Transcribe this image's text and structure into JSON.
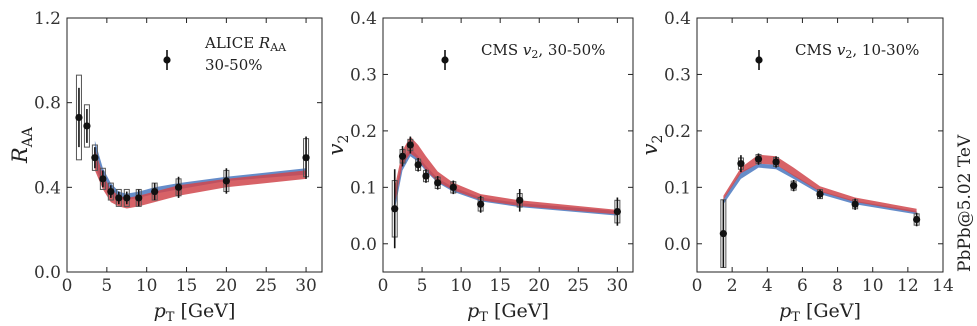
{
  "side_label": "PbPb@5.02 TeV",
  "colors": {
    "band_blue": "#4a78c0",
    "band_red": "#d0464c",
    "marker": "#111111",
    "syst_box": "#555555"
  },
  "chart_data": [
    {
      "type": "scatter",
      "panel": "raa",
      "ylabel_main": "R",
      "ylabel_sub": "AA",
      "xlabel_main": "p",
      "xlabel_sub": "T",
      "xlabel_unit": " [GeV]",
      "xlim": [
        0,
        32
      ],
      "ylim": [
        0.0,
        1.2
      ],
      "xticks": [
        0,
        5,
        10,
        15,
        20,
        25,
        30
      ],
      "yticks": [
        0.0,
        0.4,
        0.8,
        1.2
      ],
      "ytick_labels": [
        "0.0",
        "0.4",
        "0.8",
        "1.2"
      ],
      "legend": {
        "prefix": "ALICE ",
        "italic": "R",
        "sub": "AA",
        "line2": "30-50%"
      },
      "points": [
        {
          "x": 1.5,
          "y": 0.73,
          "err": 0.14,
          "sys": 0.2
        },
        {
          "x": 2.5,
          "y": 0.69,
          "err": 0.08,
          "sys": 0.1
        },
        {
          "x": 3.5,
          "y": 0.54,
          "err": 0.05,
          "sys": 0.06
        },
        {
          "x": 4.5,
          "y": 0.44,
          "err": 0.04,
          "sys": 0.05
        },
        {
          "x": 5.5,
          "y": 0.38,
          "err": 0.03,
          "sys": 0.04
        },
        {
          "x": 6.5,
          "y": 0.35,
          "err": 0.03,
          "sys": 0.04
        },
        {
          "x": 7.5,
          "y": 0.35,
          "err": 0.03,
          "sys": 0.04
        },
        {
          "x": 9.0,
          "y": 0.35,
          "err": 0.04,
          "sys": 0.04
        },
        {
          "x": 11.0,
          "y": 0.38,
          "err": 0.04,
          "sys": 0.04
        },
        {
          "x": 14.0,
          "y": 0.4,
          "err": 0.05,
          "sys": 0.04
        },
        {
          "x": 20.0,
          "y": 0.43,
          "err": 0.06,
          "sys": 0.05
        },
        {
          "x": 30.0,
          "y": 0.54,
          "err": 0.1,
          "sys": 0.09
        }
      ],
      "band_blue": {
        "x": [
          3.5,
          4.5,
          5.5,
          6.5,
          7.5,
          9,
          11,
          14,
          20,
          30
        ],
        "lo": [
          0.5,
          0.41,
          0.36,
          0.34,
          0.34,
          0.35,
          0.37,
          0.39,
          0.43,
          0.46
        ],
        "hi": [
          0.62,
          0.49,
          0.42,
          0.38,
          0.37,
          0.38,
          0.4,
          0.42,
          0.45,
          0.49
        ]
      },
      "band_red": {
        "x": [
          3.5,
          4.5,
          5.5,
          6.5,
          7.5,
          9,
          11,
          14,
          20,
          30
        ],
        "lo": [
          0.48,
          0.39,
          0.33,
          0.31,
          0.3,
          0.31,
          0.33,
          0.36,
          0.4,
          0.44
        ],
        "hi": [
          0.58,
          0.46,
          0.39,
          0.36,
          0.35,
          0.36,
          0.38,
          0.41,
          0.44,
          0.48
        ]
      }
    },
    {
      "type": "scatter",
      "panel": "v2_3050",
      "ylabel_main": "v",
      "ylabel_sub": "2",
      "xlabel_main": "p",
      "xlabel_sub": "T",
      "xlabel_unit": " [GeV]",
      "xlim": [
        0,
        32
      ],
      "ylim": [
        -0.05,
        0.4
      ],
      "xticks": [
        0,
        5,
        10,
        15,
        20,
        25,
        30
      ],
      "yticks": [
        0.0,
        0.1,
        0.2,
        0.3,
        0.4
      ],
      "ytick_labels": [
        "0.0",
        "0.1",
        "0.2",
        "0.3",
        "0.4"
      ],
      "legend": {
        "prefix": "CMS ",
        "italic": "v",
        "sub": "2",
        "line2": ", 30-50%"
      },
      "points": [
        {
          "x": 1.5,
          "y": 0.062,
          "err": 0.07,
          "sys": 0.05
        },
        {
          "x": 2.5,
          "y": 0.155,
          "err": 0.018,
          "sys": 0.012
        },
        {
          "x": 3.5,
          "y": 0.175,
          "err": 0.015,
          "sys": 0.01
        },
        {
          "x": 4.5,
          "y": 0.14,
          "err": 0.012,
          "sys": 0.01
        },
        {
          "x": 5.5,
          "y": 0.12,
          "err": 0.012,
          "sys": 0.01
        },
        {
          "x": 7.0,
          "y": 0.108,
          "err": 0.012,
          "sys": 0.01
        },
        {
          "x": 9.0,
          "y": 0.1,
          "err": 0.012,
          "sys": 0.01
        },
        {
          "x": 12.5,
          "y": 0.07,
          "err": 0.015,
          "sys": 0.012
        },
        {
          "x": 17.5,
          "y": 0.077,
          "err": 0.02,
          "sys": 0.012
        },
        {
          "x": 30.0,
          "y": 0.057,
          "err": 0.025,
          "sys": 0.02
        }
      ],
      "band_blue": {
        "x": [
          1.5,
          2.5,
          3.5,
          4.5,
          5.5,
          7,
          9,
          12.5,
          17.5,
          30
        ],
        "lo": [
          0.06,
          0.13,
          0.155,
          0.145,
          0.128,
          0.108,
          0.092,
          0.075,
          0.065,
          0.05
        ],
        "hi": [
          0.09,
          0.15,
          0.17,
          0.155,
          0.138,
          0.116,
          0.1,
          0.082,
          0.072,
          0.058
        ]
      },
      "band_red": {
        "x": [
          1.5,
          2.5,
          3.5,
          4.5,
          5.5,
          7,
          9,
          12.5,
          17.5,
          30
        ],
        "lo": [
          0.07,
          0.14,
          0.16,
          0.15,
          0.13,
          0.11,
          0.095,
          0.077,
          0.067,
          0.052
        ],
        "hi": [
          0.1,
          0.165,
          0.19,
          0.175,
          0.155,
          0.128,
          0.108,
          0.088,
          0.077,
          0.06
        ]
      }
    },
    {
      "type": "scatter",
      "panel": "v2_1030",
      "ylabel_main": "v",
      "ylabel_sub": "2",
      "xlabel_main": "p",
      "xlabel_sub": "T",
      "xlabel_unit": " [GeV]",
      "xlim": [
        0,
        14
      ],
      "ylim": [
        -0.05,
        0.4
      ],
      "xticks": [
        0,
        2,
        4,
        6,
        8,
        10,
        12,
        14
      ],
      "yticks": [
        0.0,
        0.1,
        0.2,
        0.3,
        0.4
      ],
      "ytick_labels": [
        "0.0",
        "0.1",
        "0.2",
        "0.3",
        "0.4"
      ],
      "legend": {
        "prefix": "CMS ",
        "italic": "v",
        "sub": "2",
        "line2": ", 10-30%"
      },
      "points": [
        {
          "x": 1.5,
          "y": 0.018,
          "err": 0.06,
          "sys": 0.06
        },
        {
          "x": 2.5,
          "y": 0.142,
          "err": 0.015,
          "sys": 0.01
        },
        {
          "x": 3.5,
          "y": 0.15,
          "err": 0.01,
          "sys": 0.008
        },
        {
          "x": 4.5,
          "y": 0.145,
          "err": 0.01,
          "sys": 0.008
        },
        {
          "x": 5.5,
          "y": 0.103,
          "err": 0.01,
          "sys": 0.008
        },
        {
          "x": 7.0,
          "y": 0.088,
          "err": 0.008,
          "sys": 0.008
        },
        {
          "x": 9.0,
          "y": 0.07,
          "err": 0.01,
          "sys": 0.008
        },
        {
          "x": 12.5,
          "y": 0.043,
          "err": 0.012,
          "sys": 0.01
        }
      ],
      "band_blue": {
        "x": [
          1.5,
          2.5,
          3.5,
          4.5,
          5.5,
          7,
          9,
          12.5
        ],
        "lo": [
          0.07,
          0.115,
          0.135,
          0.132,
          0.115,
          0.088,
          0.07,
          0.052
        ],
        "hi": [
          0.08,
          0.128,
          0.142,
          0.14,
          0.122,
          0.094,
          0.076,
          0.058
        ]
      },
      "band_red": {
        "x": [
          1.5,
          2.5,
          3.5,
          4.5,
          5.5,
          7,
          9,
          12.5
        ],
        "lo": [
          0.078,
          0.125,
          0.142,
          0.14,
          0.12,
          0.092,
          0.074,
          0.055
        ],
        "hi": [
          0.085,
          0.135,
          0.158,
          0.155,
          0.135,
          0.102,
          0.082,
          0.062
        ]
      }
    }
  ]
}
